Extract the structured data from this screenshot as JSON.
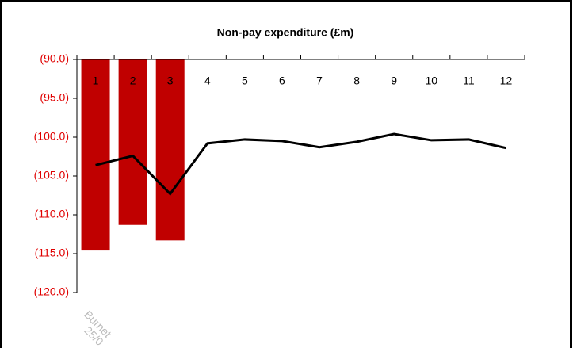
{
  "chart_data": {
    "type": "bar_line",
    "title": "Non-pay expenditure (£m)",
    "categories": [
      "1",
      "2",
      "3",
      "4",
      "5",
      "6",
      "7",
      "8",
      "9",
      "10",
      "11",
      "12"
    ],
    "series": [
      {
        "type": "bar",
        "color": "#c00000",
        "values": [
          -114.6,
          -111.3,
          -113.3,
          null,
          null,
          null,
          null,
          null,
          null,
          null,
          null,
          null
        ]
      },
      {
        "type": "line",
        "color": "#000000",
        "values": [
          -103.6,
          -102.4,
          -107.3,
          -100.8,
          -100.3,
          -100.5,
          -101.3,
          -100.6,
          -99.6,
          -100.4,
          -100.3,
          -101.4
        ]
      }
    ],
    "ylim": [
      -120,
      -90
    ],
    "yticks": [
      {
        "value": -120,
        "label": "(120.0)"
      },
      {
        "value": -115,
        "label": "(115.0)"
      },
      {
        "value": -110,
        "label": "(110.0)"
      },
      {
        "value": -105,
        "label": "(105.0)"
      },
      {
        "value": -100,
        "label": "(100.0)"
      },
      {
        "value": -95,
        "label": "(95.0)"
      },
      {
        "value": -90,
        "label": "(90.0)"
      }
    ],
    "ytick_color": "#e00000",
    "watermark": [
      "Burnet",
      "25/0"
    ]
  }
}
